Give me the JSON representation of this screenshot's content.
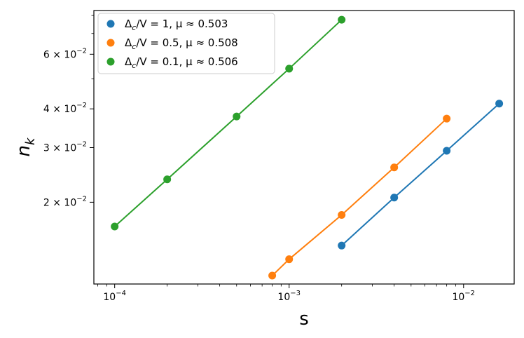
{
  "chart_data": {
    "type": "line",
    "title": "",
    "xlabel": "s",
    "ylabel": "n_k",
    "xscale": "log",
    "yscale": "log",
    "xlim": [
      7.6e-05,
      0.0195
    ],
    "ylim": [
      0.0109,
      0.083
    ],
    "grid": false,
    "legend_placement": "top-left",
    "x_ticks": [
      {
        "value": 0.0001,
        "mantissa": "10",
        "exponent": "−4"
      },
      {
        "value": 0.001,
        "mantissa": "10",
        "exponent": "−3"
      },
      {
        "value": 0.01,
        "mantissa": "10",
        "exponent": "−2"
      }
    ],
    "y_ticks": [
      {
        "value": 0.02,
        "mantissa": "2 × 10",
        "exponent": "−2"
      },
      {
        "value": 0.03,
        "mantissa": "3 × 10",
        "exponent": "−2"
      },
      {
        "value": 0.04,
        "mantissa": "4 × 10",
        "exponent": "−2"
      },
      {
        "value": 0.06,
        "mantissa": "6 × 10",
        "exponent": "−2"
      }
    ],
    "series": [
      {
        "name": "Δ_c/V = 1, μ ≈ 0.503",
        "legend_main": "Δ",
        "legend_sub": "c",
        "legend_rest": "/V = 1, μ ≈ 0.503",
        "color": "#1f77b4",
        "x": [
          0.002,
          0.004,
          0.008,
          0.016
        ],
        "y": [
          0.0145,
          0.0207,
          0.0293,
          0.0416
        ]
      },
      {
        "name": "Δ_c/V = 0.5, μ ≈ 0.508",
        "legend_main": "Δ",
        "legend_sub": "c",
        "legend_rest": "/V = 0.5, μ ≈ 0.508",
        "color": "#ff7f0e",
        "x": [
          0.0008,
          0.001,
          0.002,
          0.004,
          0.008
        ],
        "y": [
          0.0116,
          0.0131,
          0.0182,
          0.0259,
          0.0372
        ]
      },
      {
        "name": "Δ_c/V = 0.1, μ ≈ 0.506",
        "legend_main": "Δ",
        "legend_sub": "c",
        "legend_rest": "/V = 0.1, μ ≈ 0.506",
        "color": "#2ca02c",
        "x": [
          0.0001,
          0.0002,
          0.0005,
          0.001,
          0.002
        ],
        "y": [
          0.0167,
          0.0237,
          0.0378,
          0.0539,
          0.0775
        ]
      }
    ]
  }
}
